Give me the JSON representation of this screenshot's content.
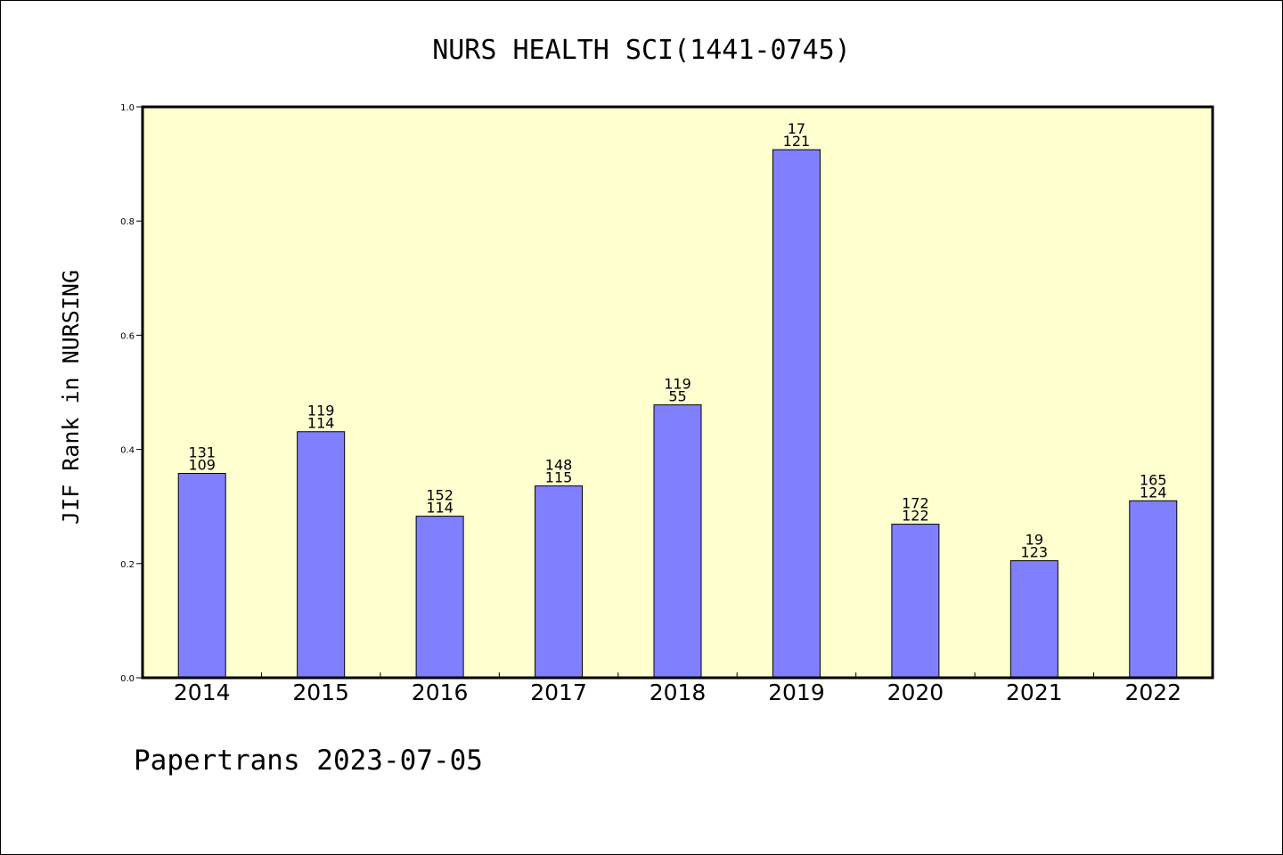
{
  "chart_data": {
    "type": "bar",
    "title": "NURS HEALTH SCI(1441-0745)",
    "xlabel": "",
    "ylabel": "JIF Rank in NURSING",
    "footer": "Papertrans 2023-07-05",
    "categories": [
      "2014",
      "2015",
      "2016",
      "2017",
      "2018",
      "2019",
      "2020",
      "2021",
      "2022"
    ],
    "values": [
      0.358,
      0.431,
      0.283,
      0.336,
      0.478,
      0.925,
      0.269,
      0.205,
      0.31
    ],
    "annotations": [
      {
        "top": "131",
        "bottom": "109"
      },
      {
        "top": "119",
        "bottom": "114"
      },
      {
        "top": "152",
        "bottom": "114"
      },
      {
        "top": "148",
        "bottom": "115"
      },
      {
        "top": "119",
        "bottom": "55"
      },
      {
        "top": "17",
        "bottom": "121"
      },
      {
        "top": "172",
        "bottom": "122"
      },
      {
        "top": "19",
        "bottom": "123"
      },
      {
        "top": "165",
        "bottom": "124"
      }
    ],
    "ylim": [
      0,
      1.0
    ],
    "yticks": [
      "0.0",
      "0.2",
      "0.4",
      "0.6",
      "0.8",
      "1.0"
    ],
    "grid": false,
    "colors": {
      "bar": "#8080ff",
      "plot_background": "#ffffd0",
      "axis": "#000000"
    }
  }
}
